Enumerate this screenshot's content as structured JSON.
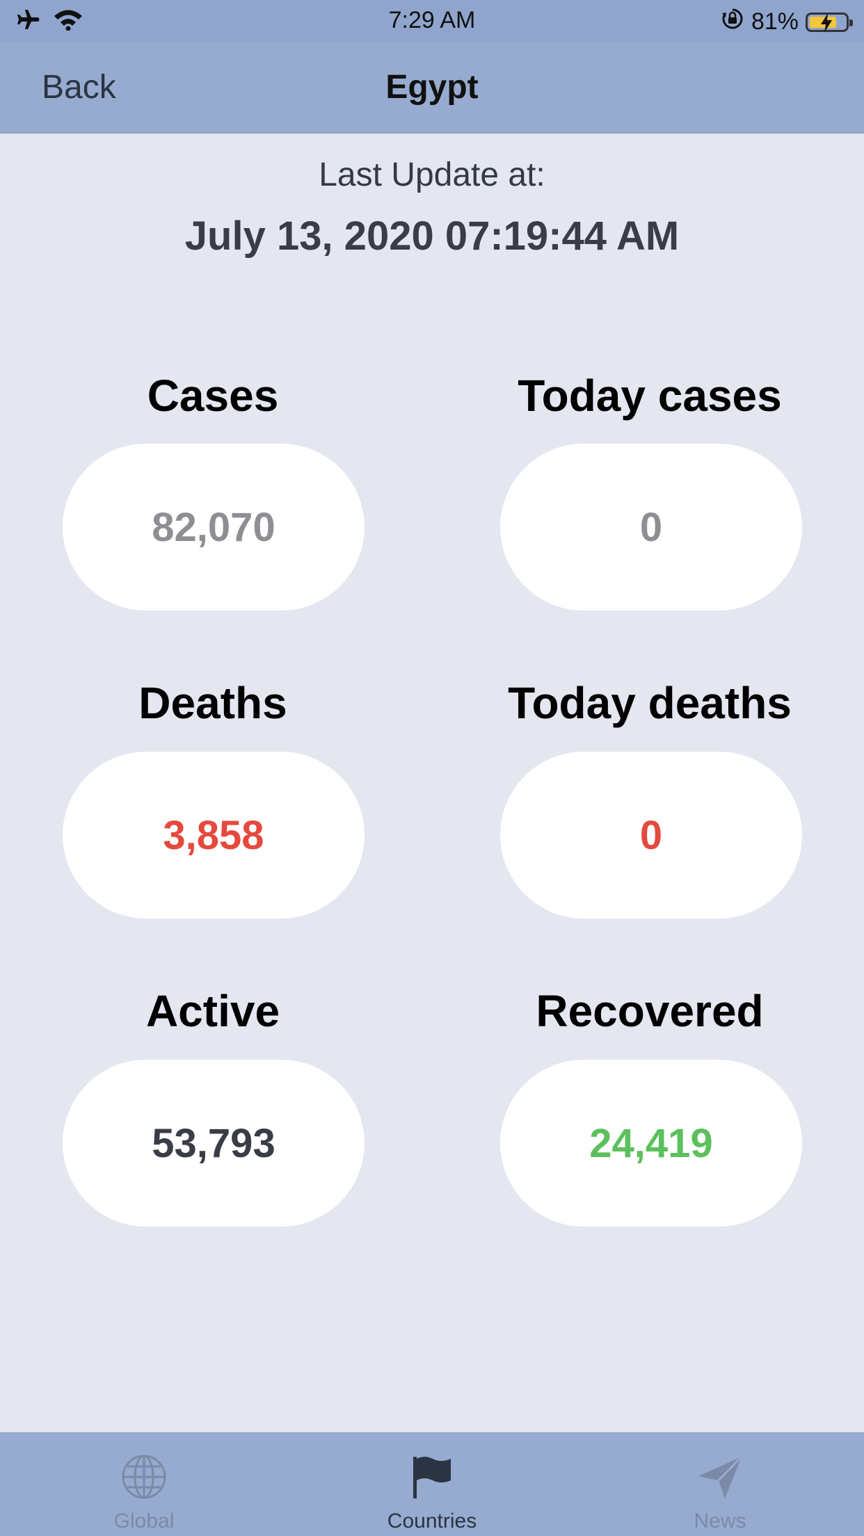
{
  "status_bar": {
    "time": "7:29 AM",
    "battery": "81%",
    "icons": [
      "airplane-icon",
      "wifi-icon",
      "orientation-lock-icon",
      "battery-charging-icon"
    ]
  },
  "nav": {
    "back_label": "Back",
    "title": "Egypt"
  },
  "update": {
    "label": "Last Update at:",
    "time": "July 13, 2020 07:19:44 AM"
  },
  "stats": {
    "cases": {
      "label": "Cases",
      "value": "82,070"
    },
    "today_cases": {
      "label": "Today cases",
      "value": "0"
    },
    "deaths": {
      "label": "Deaths",
      "value": "3,858"
    },
    "today_deaths": {
      "label": "Today deaths",
      "value": "0"
    },
    "active": {
      "label": "Active",
      "value": "53,793"
    },
    "recovered": {
      "label": "Recovered",
      "value": "24,419"
    }
  },
  "colors": {
    "neutral": "#8e8e93",
    "deaths": "#e5493d",
    "active": "#3a3d46",
    "recovered": "#5cc05c",
    "tab_active": "#2b3442",
    "tab_inactive": "#7b8aa6"
  },
  "tabs": [
    {
      "label": "Global",
      "icon": "globe-icon",
      "active": false
    },
    {
      "label": "Countries",
      "icon": "flag-icon",
      "active": true
    },
    {
      "label": "News",
      "icon": "paper-plane-icon",
      "active": false
    }
  ]
}
